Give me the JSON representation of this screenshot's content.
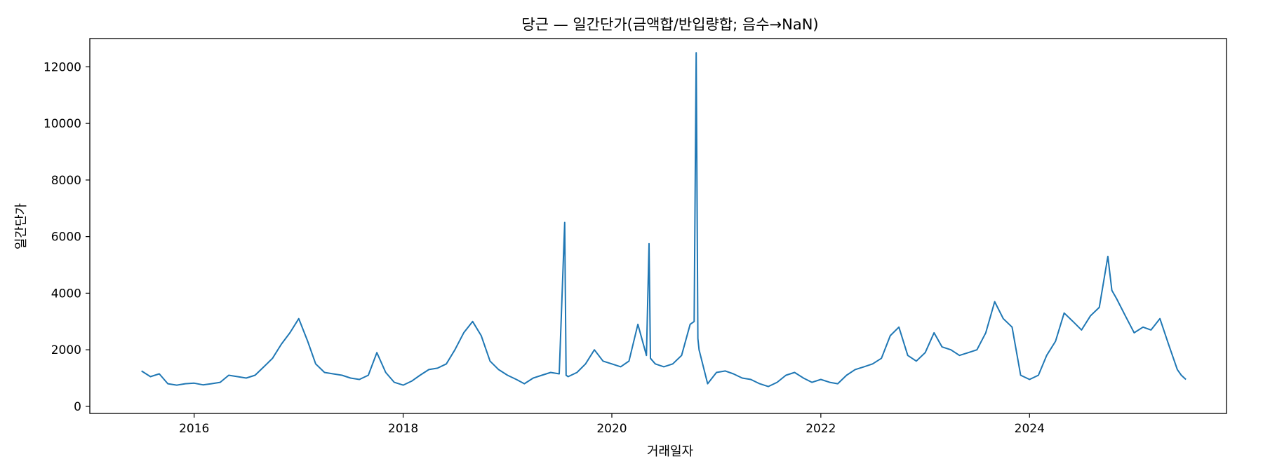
{
  "chart_data": {
    "type": "line",
    "title": "당근 — 일간단가(금액합/반입량합; 음수→NaN)",
    "xlabel": "거래일자",
    "ylabel": "일간단가",
    "xlim": [
      "2015-01-01",
      "2025-11-20"
    ],
    "ylim": [
      -250,
      13000
    ],
    "x_ticks": [
      "2016",
      "2018",
      "2020",
      "2022",
      "2024"
    ],
    "y_ticks": [
      0,
      2000,
      4000,
      6000,
      8000,
      10000,
      12000
    ],
    "grid": false,
    "series": [
      {
        "color": "#1f77b4",
        "points": [
          [
            "2015-07-01",
            1250
          ],
          [
            "2015-08-01",
            1050
          ],
          [
            "2015-09-01",
            1150
          ],
          [
            "2015-10-01",
            800
          ],
          [
            "2015-11-01",
            750
          ],
          [
            "2015-12-01",
            800
          ],
          [
            "2016-01-01",
            820
          ],
          [
            "2016-02-01",
            760
          ],
          [
            "2016-03-01",
            800
          ],
          [
            "2016-04-01",
            850
          ],
          [
            "2016-05-01",
            1100
          ],
          [
            "2016-06-01",
            1050
          ],
          [
            "2016-07-01",
            1000
          ],
          [
            "2016-08-01",
            1100
          ],
          [
            "2016-09-01",
            1400
          ],
          [
            "2016-10-01",
            1700
          ],
          [
            "2016-11-01",
            2200
          ],
          [
            "2016-12-01",
            2600
          ],
          [
            "2017-01-01",
            3100
          ],
          [
            "2017-02-01",
            2300
          ],
          [
            "2017-03-01",
            1500
          ],
          [
            "2017-04-01",
            1200
          ],
          [
            "2017-05-01",
            1150
          ],
          [
            "2017-06-01",
            1100
          ],
          [
            "2017-07-01",
            1000
          ],
          [
            "2017-08-01",
            950
          ],
          [
            "2017-09-01",
            1100
          ],
          [
            "2017-10-01",
            1900
          ],
          [
            "2017-11-01",
            1200
          ],
          [
            "2017-12-01",
            850
          ],
          [
            "2018-01-01",
            750
          ],
          [
            "2018-02-01",
            900
          ],
          [
            "2018-03-01",
            1100
          ],
          [
            "2018-04-01",
            1300
          ],
          [
            "2018-05-01",
            1350
          ],
          [
            "2018-06-01",
            1500
          ],
          [
            "2018-07-01",
            2000
          ],
          [
            "2018-08-01",
            2600
          ],
          [
            "2018-09-01",
            3000
          ],
          [
            "2018-10-01",
            2500
          ],
          [
            "2018-11-01",
            1600
          ],
          [
            "2018-12-01",
            1300
          ],
          [
            "2019-01-01",
            1100
          ],
          [
            "2019-02-01",
            950
          ],
          [
            "2019-03-01",
            800
          ],
          [
            "2019-04-01",
            1000
          ],
          [
            "2019-05-01",
            1100
          ],
          [
            "2019-06-01",
            1200
          ],
          [
            "2019-07-01",
            1150
          ],
          [
            "2019-07-20",
            6500
          ],
          [
            "2019-07-25",
            1100
          ],
          [
            "2019-08-01",
            1050
          ],
          [
            "2019-09-01",
            1200
          ],
          [
            "2019-10-01",
            1500
          ],
          [
            "2019-11-01",
            2000
          ],
          [
            "2019-12-01",
            1600
          ],
          [
            "2020-01-01",
            1500
          ],
          [
            "2020-02-01",
            1400
          ],
          [
            "2020-03-01",
            1600
          ],
          [
            "2020-04-01",
            2900
          ],
          [
            "2020-05-01",
            1800
          ],
          [
            "2020-05-10",
            5750
          ],
          [
            "2020-05-15",
            1700
          ],
          [
            "2020-06-01",
            1500
          ],
          [
            "2020-07-01",
            1400
          ],
          [
            "2020-08-01",
            1500
          ],
          [
            "2020-09-01",
            1800
          ],
          [
            "2020-10-01",
            2900
          ],
          [
            "2020-10-15",
            3000
          ],
          [
            "2020-10-22",
            12500
          ],
          [
            "2020-10-28",
            2400
          ],
          [
            "2020-11-01",
            2000
          ],
          [
            "2020-12-01",
            800
          ],
          [
            "2021-01-01",
            1200
          ],
          [
            "2021-02-01",
            1250
          ],
          [
            "2021-03-01",
            1150
          ],
          [
            "2021-04-01",
            1000
          ],
          [
            "2021-05-01",
            950
          ],
          [
            "2021-06-01",
            800
          ],
          [
            "2021-07-01",
            700
          ],
          [
            "2021-08-01",
            850
          ],
          [
            "2021-09-01",
            1100
          ],
          [
            "2021-10-01",
            1200
          ],
          [
            "2021-11-01",
            1000
          ],
          [
            "2021-12-01",
            850
          ],
          [
            "2022-01-01",
            950
          ],
          [
            "2022-02-01",
            850
          ],
          [
            "2022-03-01",
            800
          ],
          [
            "2022-04-01",
            1100
          ],
          [
            "2022-05-01",
            1300
          ],
          [
            "2022-06-01",
            1400
          ],
          [
            "2022-07-01",
            1500
          ],
          [
            "2022-08-01",
            1700
          ],
          [
            "2022-09-01",
            2500
          ],
          [
            "2022-10-01",
            2800
          ],
          [
            "2022-11-01",
            1800
          ],
          [
            "2022-12-01",
            1600
          ],
          [
            "2023-01-01",
            1900
          ],
          [
            "2023-02-01",
            2600
          ],
          [
            "2023-03-01",
            2100
          ],
          [
            "2023-04-01",
            2000
          ],
          [
            "2023-05-01",
            1800
          ],
          [
            "2023-06-01",
            1900
          ],
          [
            "2023-07-01",
            2000
          ],
          [
            "2023-08-01",
            2600
          ],
          [
            "2023-09-01",
            3700
          ],
          [
            "2023-10-01",
            3100
          ],
          [
            "2023-11-01",
            2800
          ],
          [
            "2023-12-01",
            1100
          ],
          [
            "2024-01-01",
            950
          ],
          [
            "2024-02-01",
            1100
          ],
          [
            "2024-03-01",
            1800
          ],
          [
            "2024-04-01",
            2300
          ],
          [
            "2024-05-01",
            3300
          ],
          [
            "2024-06-01",
            3000
          ],
          [
            "2024-07-01",
            2700
          ],
          [
            "2024-08-01",
            3200
          ],
          [
            "2024-09-01",
            3500
          ],
          [
            "2024-10-01",
            5300
          ],
          [
            "2024-10-15",
            4100
          ],
          [
            "2024-11-01",
            3800
          ],
          [
            "2024-12-01",
            3200
          ],
          [
            "2025-01-01",
            2600
          ],
          [
            "2025-02-01",
            2800
          ],
          [
            "2025-03-01",
            2700
          ],
          [
            "2025-04-01",
            3100
          ],
          [
            "2025-05-01",
            2200
          ],
          [
            "2025-06-01",
            1300
          ],
          [
            "2025-06-15",
            1100
          ],
          [
            "2025-07-01",
            950
          ]
        ]
      }
    ]
  }
}
